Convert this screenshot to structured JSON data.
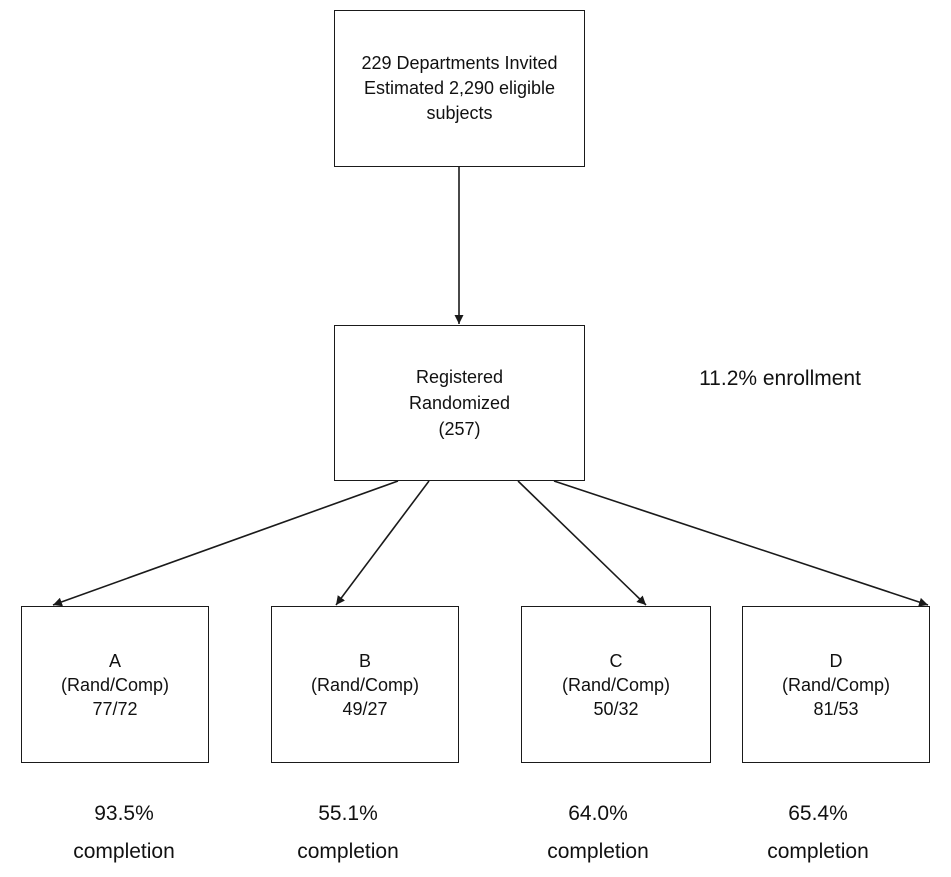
{
  "source_node": {
    "line1": "229 Departments Invited",
    "line2": "Estimated 2,290 eligible",
    "line3": "subjects"
  },
  "registration_node": {
    "line1": "Registered",
    "line2": "Randomized",
    "line3": "(257)"
  },
  "enrollment_note": "11.2% enrollment",
  "arms": [
    {
      "name": "A",
      "sublabel": "(Rand/Comp)",
      "counts": "77/72",
      "completion_pct": "93.5%",
      "completion_label": "completion"
    },
    {
      "name": "B",
      "sublabel": "(Rand/Comp)",
      "counts": "49/27",
      "completion_pct": "55.1%",
      "completion_label": "completion"
    },
    {
      "name": "C",
      "sublabel": "(Rand/Comp)",
      "counts": "50/32",
      "completion_pct": "64.0%",
      "completion_label": "completion"
    },
    {
      "name": "D",
      "sublabel": "(Rand/Comp)",
      "counts": "81/53",
      "completion_pct": "65.4%",
      "completion_label": "completion"
    }
  ],
  "colors": {
    "line": "#1a1a1a",
    "background": "#ffffff",
    "text": "#111111"
  }
}
